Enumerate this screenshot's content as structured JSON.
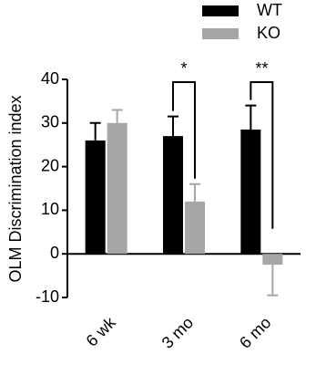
{
  "chart_data": {
    "type": "bar",
    "y_label": "OLM Discrimination index",
    "categories": [
      "6 wk",
      "3 mo",
      "6 mo"
    ],
    "series": [
      {
        "name": "WT",
        "color": "#000000",
        "values": [
          26,
          27,
          28.5
        ],
        "errors": [
          4,
          4.5,
          5.5
        ]
      },
      {
        "name": "KO",
        "color": "#a6a6a6",
        "values": [
          30,
          12,
          -2.5
        ],
        "errors": [
          3,
          4,
          7
        ]
      }
    ],
    "ylim": [
      -10,
      40
    ],
    "yticks": [
      40,
      30,
      20,
      10,
      0,
      -10
    ],
    "annotations": [
      {
        "text": "*",
        "category": 1
      },
      {
        "text": "**",
        "category": 2
      }
    ],
    "legend": "top-right"
  }
}
